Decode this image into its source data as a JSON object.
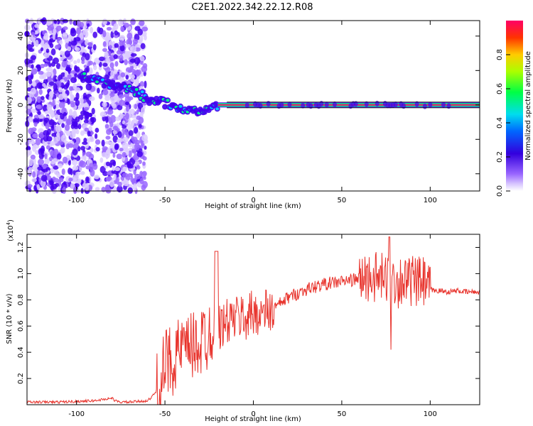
{
  "title": "C2E1.2022.342.22.12.R08",
  "colors": {
    "line": "#e8332c",
    "axis": "#000000",
    "background": "#ffffff"
  },
  "chart_data": [
    {
      "type": "heatmap",
      "xlabel": "Height of straight line (km)",
      "ylabel": "Frequency (Hz)",
      "xlim": [
        -128,
        128
      ],
      "ylim": [
        -50,
        49
      ],
      "xticks": [
        -100,
        -50,
        0,
        50,
        100
      ],
      "yticks": [
        -40,
        -20,
        0,
        20,
        40
      ],
      "colorbar": {
        "label": "Normalized spectral amplitude",
        "range": [
          0.0,
          1.0
        ],
        "ticks": [
          "0.0",
          "0.2",
          "0.4",
          "0.6",
          "0.8"
        ],
        "tick_values": [
          0.0,
          0.2,
          0.4,
          0.6,
          0.8
        ],
        "colormap": [
          "#ffffff",
          "#9966ff",
          "#4400ee",
          "#0044ff",
          "#00ccff",
          "#00ff88",
          "#33ff00",
          "#ccff00",
          "#ffcc00",
          "#ff3300",
          "#ff0066"
        ]
      },
      "features": [
        {
          "name": "noise region",
          "x_range": [
            -128,
            -61
          ],
          "freq_range": [
            -50,
            49
          ]
        },
        {
          "name": "signal track",
          "points": [
            [
              -98,
              16
            ],
            [
              -90,
              15
            ],
            [
              -82,
              13
            ],
            [
              -74,
              10
            ],
            [
              -66,
              7
            ],
            [
              -58,
              3
            ],
            [
              -50,
              1
            ],
            [
              -42,
              -3
            ],
            [
              -34,
              -4
            ],
            [
              -26,
              -2
            ],
            [
              -18,
              0
            ],
            [
              -5,
              0
            ],
            [
              5,
              2
            ],
            [
              10,
              0
            ],
            [
              60,
              0
            ],
            [
              128,
              0
            ]
          ]
        }
      ]
    },
    {
      "type": "line",
      "xlabel": "Height of straight line (km)",
      "ylabel": "SNR (10 * v/v)",
      "yscale_label": "(x10",
      "yscale_exp": "4",
      "yscale_close": ")",
      "xlim": [
        -128,
        128
      ],
      "ylim": [
        0.0,
        1.3
      ],
      "xticks": [
        -100,
        -50,
        0,
        50,
        100
      ],
      "yticks": [
        "0.2",
        "0.4",
        "0.6",
        "0.8",
        "1.0",
        "1.2"
      ],
      "ytick_values": [
        0.2,
        0.4,
        0.6,
        0.8,
        1.0,
        1.2
      ],
      "series": [
        {
          "x": [
            -128,
            -110,
            -90,
            -80,
            -78,
            -76,
            -70,
            -60,
            -58,
            -55,
            -52,
            -50,
            -48,
            -46,
            -44,
            -42,
            -40,
            -38,
            -36,
            -34,
            -32,
            -30,
            -28,
            -26,
            -24,
            -22,
            -20,
            -18,
            -16,
            -14,
            -12,
            -10,
            -8,
            -6,
            -4,
            -2,
            0,
            2,
            4,
            6,
            8,
            10,
            12,
            14,
            16,
            18,
            20,
            25,
            30,
            35,
            40,
            45,
            50,
            55,
            60,
            65,
            68,
            70,
            72,
            74,
            76,
            77,
            78,
            80,
            82,
            84,
            86,
            88,
            90,
            92,
            94,
            96,
            98,
            100,
            102,
            105,
            110,
            115,
            120,
            125,
            128
          ],
          "y": [
            0.02,
            0.02,
            0.03,
            0.05,
            0.03,
            0.02,
            0.02,
            0.03,
            0.05,
            0.1,
            0.2,
            0.28,
            0.35,
            0.32,
            0.4,
            0.38,
            0.45,
            0.36,
            0.48,
            0.42,
            0.5,
            0.44,
            0.55,
            0.5,
            0.6,
            0.62,
            0.58,
            0.6,
            0.62,
            0.64,
            0.65,
            0.66,
            0.66,
            0.68,
            0.65,
            0.7,
            0.68,
            0.72,
            0.68,
            0.7,
            0.72,
            0.7,
            0.74,
            0.76,
            0.78,
            0.8,
            0.82,
            0.85,
            0.88,
            0.9,
            0.92,
            0.93,
            0.94,
            0.95,
            0.96,
            0.97,
            0.98,
            0.96,
            0.97,
            0.95,
            0.96,
            0.97,
            0.94,
            0.95,
            0.93,
            0.96,
            0.94,
            0.93,
            0.95,
            0.92,
            0.94,
            0.93,
            0.9,
            0.88,
            0.87,
            0.87,
            0.86,
            0.87,
            0.86,
            0.86,
            0.86
          ]
        }
      ]
    }
  ]
}
